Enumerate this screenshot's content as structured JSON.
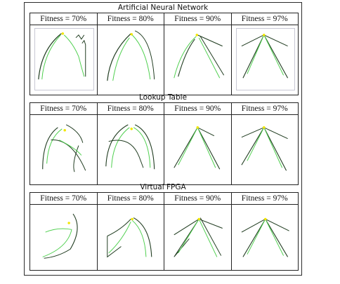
{
  "figure": {
    "sections": [
      {
        "title": "Artificial Neural Network",
        "columns": [
          {
            "header": "Fitness = 70%",
            "fitness": 70
          },
          {
            "header": "Fitness = 80%",
            "fitness": 80
          },
          {
            "header": "Fitness = 90%",
            "fitness": 90
          },
          {
            "header": "Fitness = 97%",
            "fitness": 97
          }
        ]
      },
      {
        "title": "Lookup Table",
        "columns": [
          {
            "header": "Fitness = 70%",
            "fitness": 70
          },
          {
            "header": "Fitness = 80%",
            "fitness": 80
          },
          {
            "header": "Fitness = 90%",
            "fitness": 90
          },
          {
            "header": "Fitness = 97%",
            "fitness": 97
          }
        ]
      },
      {
        "title": "Virtual FPGA",
        "columns": [
          {
            "header": "Fitness = 70%",
            "fitness": 70
          },
          {
            "header": "Fitness = 80%",
            "fitness": 80
          },
          {
            "header": "Fitness = 90%",
            "fitness": 90
          },
          {
            "header": "Fitness = 97%",
            "fitness": 97
          }
        ]
      }
    ],
    "colors": {
      "dark_stroke": "#1f3b1f",
      "green_stroke": "#4fd04f",
      "goal_marker": "#f2e600",
      "border": "#222222"
    }
  }
}
